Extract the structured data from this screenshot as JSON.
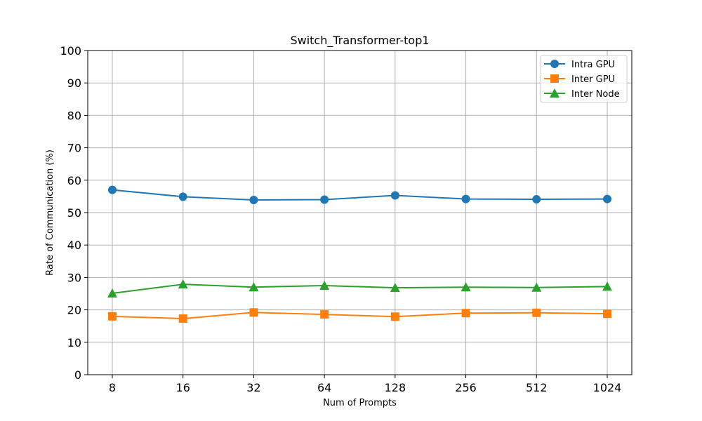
{
  "chart_data": {
    "type": "line",
    "title": "Switch_Transformer-top1",
    "xlabel": "Num of Prompts",
    "ylabel": "Rate of Communication (%)",
    "categories": [
      "8",
      "16",
      "32",
      "64",
      "128",
      "256",
      "512",
      "1024"
    ],
    "ylim": [
      0,
      100
    ],
    "yticks": [
      0,
      10,
      20,
      30,
      40,
      50,
      60,
      70,
      80,
      90,
      100
    ],
    "grid": true,
    "legend_position": "top-right",
    "series": [
      {
        "name": "Intra GPU",
        "color": "#1f77b4",
        "marker": "circle",
        "values": [
          57.0,
          54.9,
          53.9,
          54.0,
          55.3,
          54.2,
          54.1,
          54.2
        ]
      },
      {
        "name": "Inter GPU",
        "color": "#ff7f0e",
        "marker": "square",
        "values": [
          18.0,
          17.3,
          19.2,
          18.6,
          17.9,
          19.0,
          19.1,
          18.8
        ]
      },
      {
        "name": "Inter Node",
        "color": "#2ca02c",
        "marker": "triangle",
        "values": [
          25.1,
          27.9,
          27.0,
          27.5,
          26.8,
          27.0,
          26.9,
          27.2
        ]
      }
    ]
  }
}
